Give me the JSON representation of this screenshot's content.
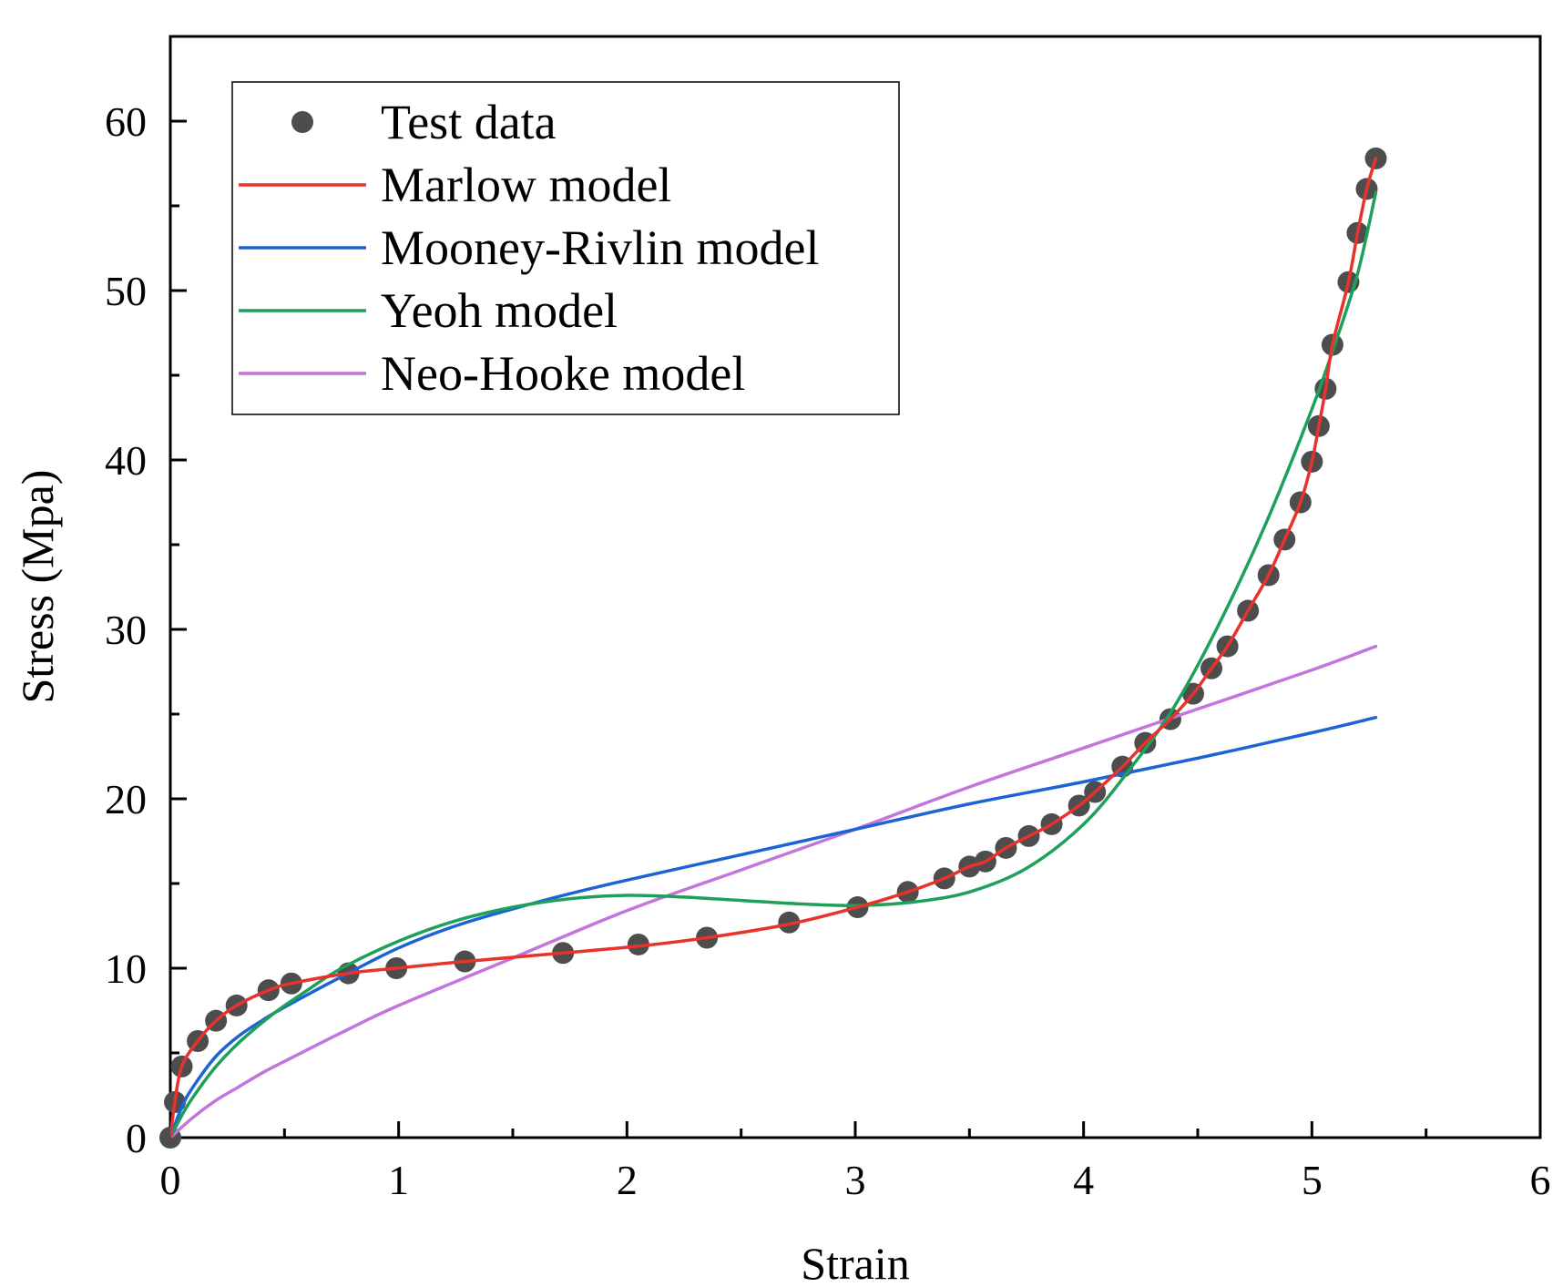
{
  "chart_data": {
    "type": "line",
    "title": "",
    "xlabel": "Strain",
    "ylabel": "Stress (Mpa)",
    "xlim": [
      0,
      6
    ],
    "ylim": [
      0,
      65
    ],
    "xticks": [
      0,
      1,
      2,
      3,
      4,
      5,
      6
    ],
    "yticks": [
      0,
      10,
      20,
      30,
      40,
      50,
      60
    ],
    "xtick_labels": [
      "0",
      "1",
      "2",
      "3",
      "4",
      "5",
      "6"
    ],
    "ytick_labels": [
      "0",
      "10",
      "20",
      "30",
      "40",
      "50",
      "60"
    ],
    "grid": false,
    "legend_position": "top-left",
    "series": [
      {
        "name": "Test data",
        "kind": "scatter",
        "color": "#4d4d4d",
        "x": [
          0.0,
          0.02,
          0.05,
          0.12,
          0.2,
          0.29,
          0.43,
          0.53,
          0.78,
          0.99,
          1.29,
          1.72,
          2.05,
          2.35,
          2.71,
          3.01,
          3.23,
          3.39,
          3.5,
          3.57,
          3.66,
          3.76,
          3.86,
          3.98,
          4.05,
          4.17,
          4.27,
          4.38,
          4.48,
          4.56,
          4.63,
          4.72,
          4.81,
          4.88,
          4.95,
          5.0,
          5.03,
          5.06,
          5.09,
          5.16,
          5.2,
          5.24,
          5.28
        ],
        "y": [
          0.0,
          2.1,
          4.2,
          5.7,
          6.9,
          7.8,
          8.7,
          9.1,
          9.7,
          10.0,
          10.4,
          10.9,
          11.4,
          11.8,
          12.7,
          13.6,
          14.5,
          15.3,
          16.0,
          16.3,
          17.1,
          17.8,
          18.5,
          19.6,
          20.4,
          21.9,
          23.3,
          24.7,
          26.2,
          27.7,
          29.0,
          31.1,
          33.2,
          35.3,
          37.5,
          39.9,
          42.0,
          44.2,
          46.8,
          50.5,
          53.4,
          56.0,
          57.8
        ]
      },
      {
        "name": "Marlow model",
        "kind": "line",
        "color": "#e8322c",
        "x": [
          0.0,
          0.02,
          0.05,
          0.12,
          0.2,
          0.29,
          0.43,
          0.53,
          0.78,
          0.99,
          1.29,
          1.72,
          2.05,
          2.35,
          2.71,
          3.01,
          3.23,
          3.39,
          3.5,
          3.57,
          3.66,
          3.76,
          3.86,
          3.98,
          4.05,
          4.17,
          4.27,
          4.38,
          4.48,
          4.56,
          4.63,
          4.72,
          4.81,
          4.88,
          4.95,
          5.0,
          5.03,
          5.06,
          5.09,
          5.16,
          5.2,
          5.24,
          5.28
        ],
        "y": [
          0.0,
          2.1,
          4.2,
          5.7,
          6.9,
          7.8,
          8.7,
          9.1,
          9.7,
          10.0,
          10.4,
          10.9,
          11.3,
          11.8,
          12.6,
          13.6,
          14.5,
          15.3,
          16.0,
          16.3,
          17.1,
          17.8,
          18.5,
          19.6,
          20.4,
          21.9,
          23.3,
          24.7,
          26.2,
          27.7,
          29.0,
          31.1,
          33.2,
          35.3,
          37.5,
          39.9,
          42.0,
          44.2,
          46.8,
          50.5,
          53.4,
          56.0,
          57.8
        ]
      },
      {
        "name": "Mooney-Rivlin model",
        "kind": "line",
        "color": "#1c64d6",
        "x": [
          0.0,
          0.05,
          0.1,
          0.2,
          0.3,
          0.4,
          0.5,
          0.75,
          1.0,
          1.25,
          1.5,
          1.75,
          2.0,
          2.5,
          3.0,
          3.5,
          4.0,
          4.5,
          5.0,
          5.28
        ],
        "y": [
          0.0,
          1.8,
          3.0,
          4.8,
          6.0,
          6.9,
          7.7,
          9.5,
          11.2,
          12.5,
          13.5,
          14.4,
          15.2,
          16.7,
          18.2,
          19.7,
          21.0,
          22.4,
          23.9,
          24.8
        ]
      },
      {
        "name": "Yeoh model",
        "kind": "line",
        "color": "#1ea05a",
        "x": [
          0.0,
          0.05,
          0.1,
          0.2,
          0.3,
          0.45,
          0.6,
          0.75,
          1.0,
          1.25,
          1.5,
          1.75,
          2.0,
          2.25,
          2.5,
          2.75,
          3.0,
          3.25,
          3.5,
          3.75,
          4.0,
          4.2,
          4.4,
          4.6,
          4.8,
          5.0,
          5.1,
          5.2,
          5.28
        ],
        "y": [
          0.0,
          1.3,
          2.4,
          4.2,
          5.6,
          7.3,
          8.7,
          10.0,
          11.6,
          12.8,
          13.6,
          14.1,
          14.3,
          14.2,
          14.0,
          13.8,
          13.7,
          13.9,
          14.5,
          15.9,
          18.5,
          21.7,
          25.5,
          30.5,
          36.3,
          43.0,
          46.8,
          51.0,
          55.8
        ]
      },
      {
        "name": "Neo-Hooke model",
        "kind": "line",
        "color": "#c275dc",
        "x": [
          0.0,
          0.1,
          0.2,
          0.3,
          0.4,
          0.5,
          0.75,
          1.0,
          1.5,
          2.0,
          2.5,
          3.0,
          3.5,
          4.0,
          4.5,
          5.0,
          5.28
        ],
        "y": [
          0.0,
          1.2,
          2.2,
          3.0,
          3.8,
          4.5,
          6.2,
          7.8,
          10.6,
          13.4,
          15.8,
          18.2,
          20.7,
          23.0,
          25.3,
          27.6,
          29.0
        ]
      }
    ]
  }
}
